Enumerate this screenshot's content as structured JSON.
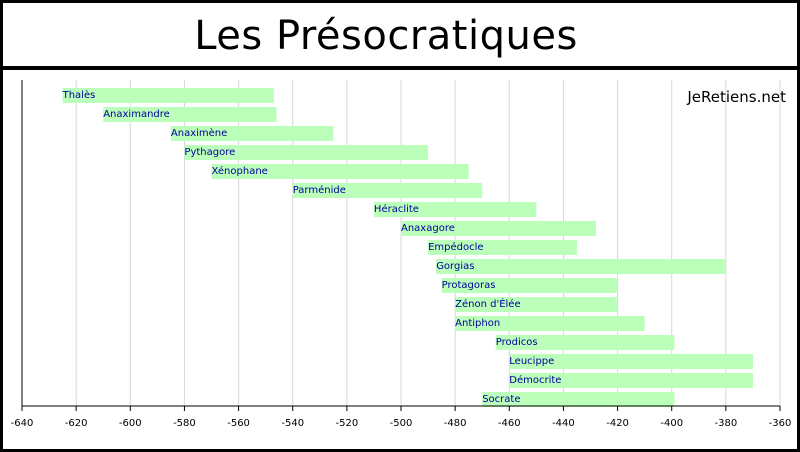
{
  "header": {
    "title": "Les Présocratiques"
  },
  "watermark": "JeRetiens.net",
  "colors": {
    "bar": "#bbffbb",
    "label": "#000099",
    "grid": "#d8d8d8",
    "axis": "#000000"
  },
  "chart_data": {
    "type": "bar",
    "orientation": "horizontal-timeline",
    "title": "Les Présocratiques",
    "xlim": [
      -640,
      -360
    ],
    "xticks": [
      -640,
      -620,
      -600,
      -580,
      -560,
      -540,
      -520,
      -500,
      -480,
      -460,
      -440,
      -420,
      -400,
      -380,
      -360
    ],
    "grid": true,
    "bars": [
      {
        "label": "Thalès",
        "start": -625,
        "end": -547
      },
      {
        "label": "Anaximandre",
        "start": -610,
        "end": -546
      },
      {
        "label": "Anaximène",
        "start": -585,
        "end": -525
      },
      {
        "label": "Pythagore",
        "start": -580,
        "end": -490
      },
      {
        "label": "Xénophane",
        "start": -570,
        "end": -475
      },
      {
        "label": "Parménide",
        "start": -540,
        "end": -470
      },
      {
        "label": "Héraclite",
        "start": -510,
        "end": -450
      },
      {
        "label": "Anaxagore",
        "start": -500,
        "end": -428
      },
      {
        "label": "Empédocle",
        "start": -490,
        "end": -435
      },
      {
        "label": "Gorgias",
        "start": -487,
        "end": -380
      },
      {
        "label": "Protagoras",
        "start": -485,
        "end": -420
      },
      {
        "label": "Zénon d'Élée",
        "start": -480,
        "end": -420
      },
      {
        "label": "Antiphon",
        "start": -480,
        "end": -410
      },
      {
        "label": "Prodicos",
        "start": -465,
        "end": -399
      },
      {
        "label": "Leucippe",
        "start": -460,
        "end": -370
      },
      {
        "label": "Démocrite",
        "start": -460,
        "end": -370
      },
      {
        "label": "Socrate",
        "start": -470,
        "end": -399
      }
    ]
  }
}
